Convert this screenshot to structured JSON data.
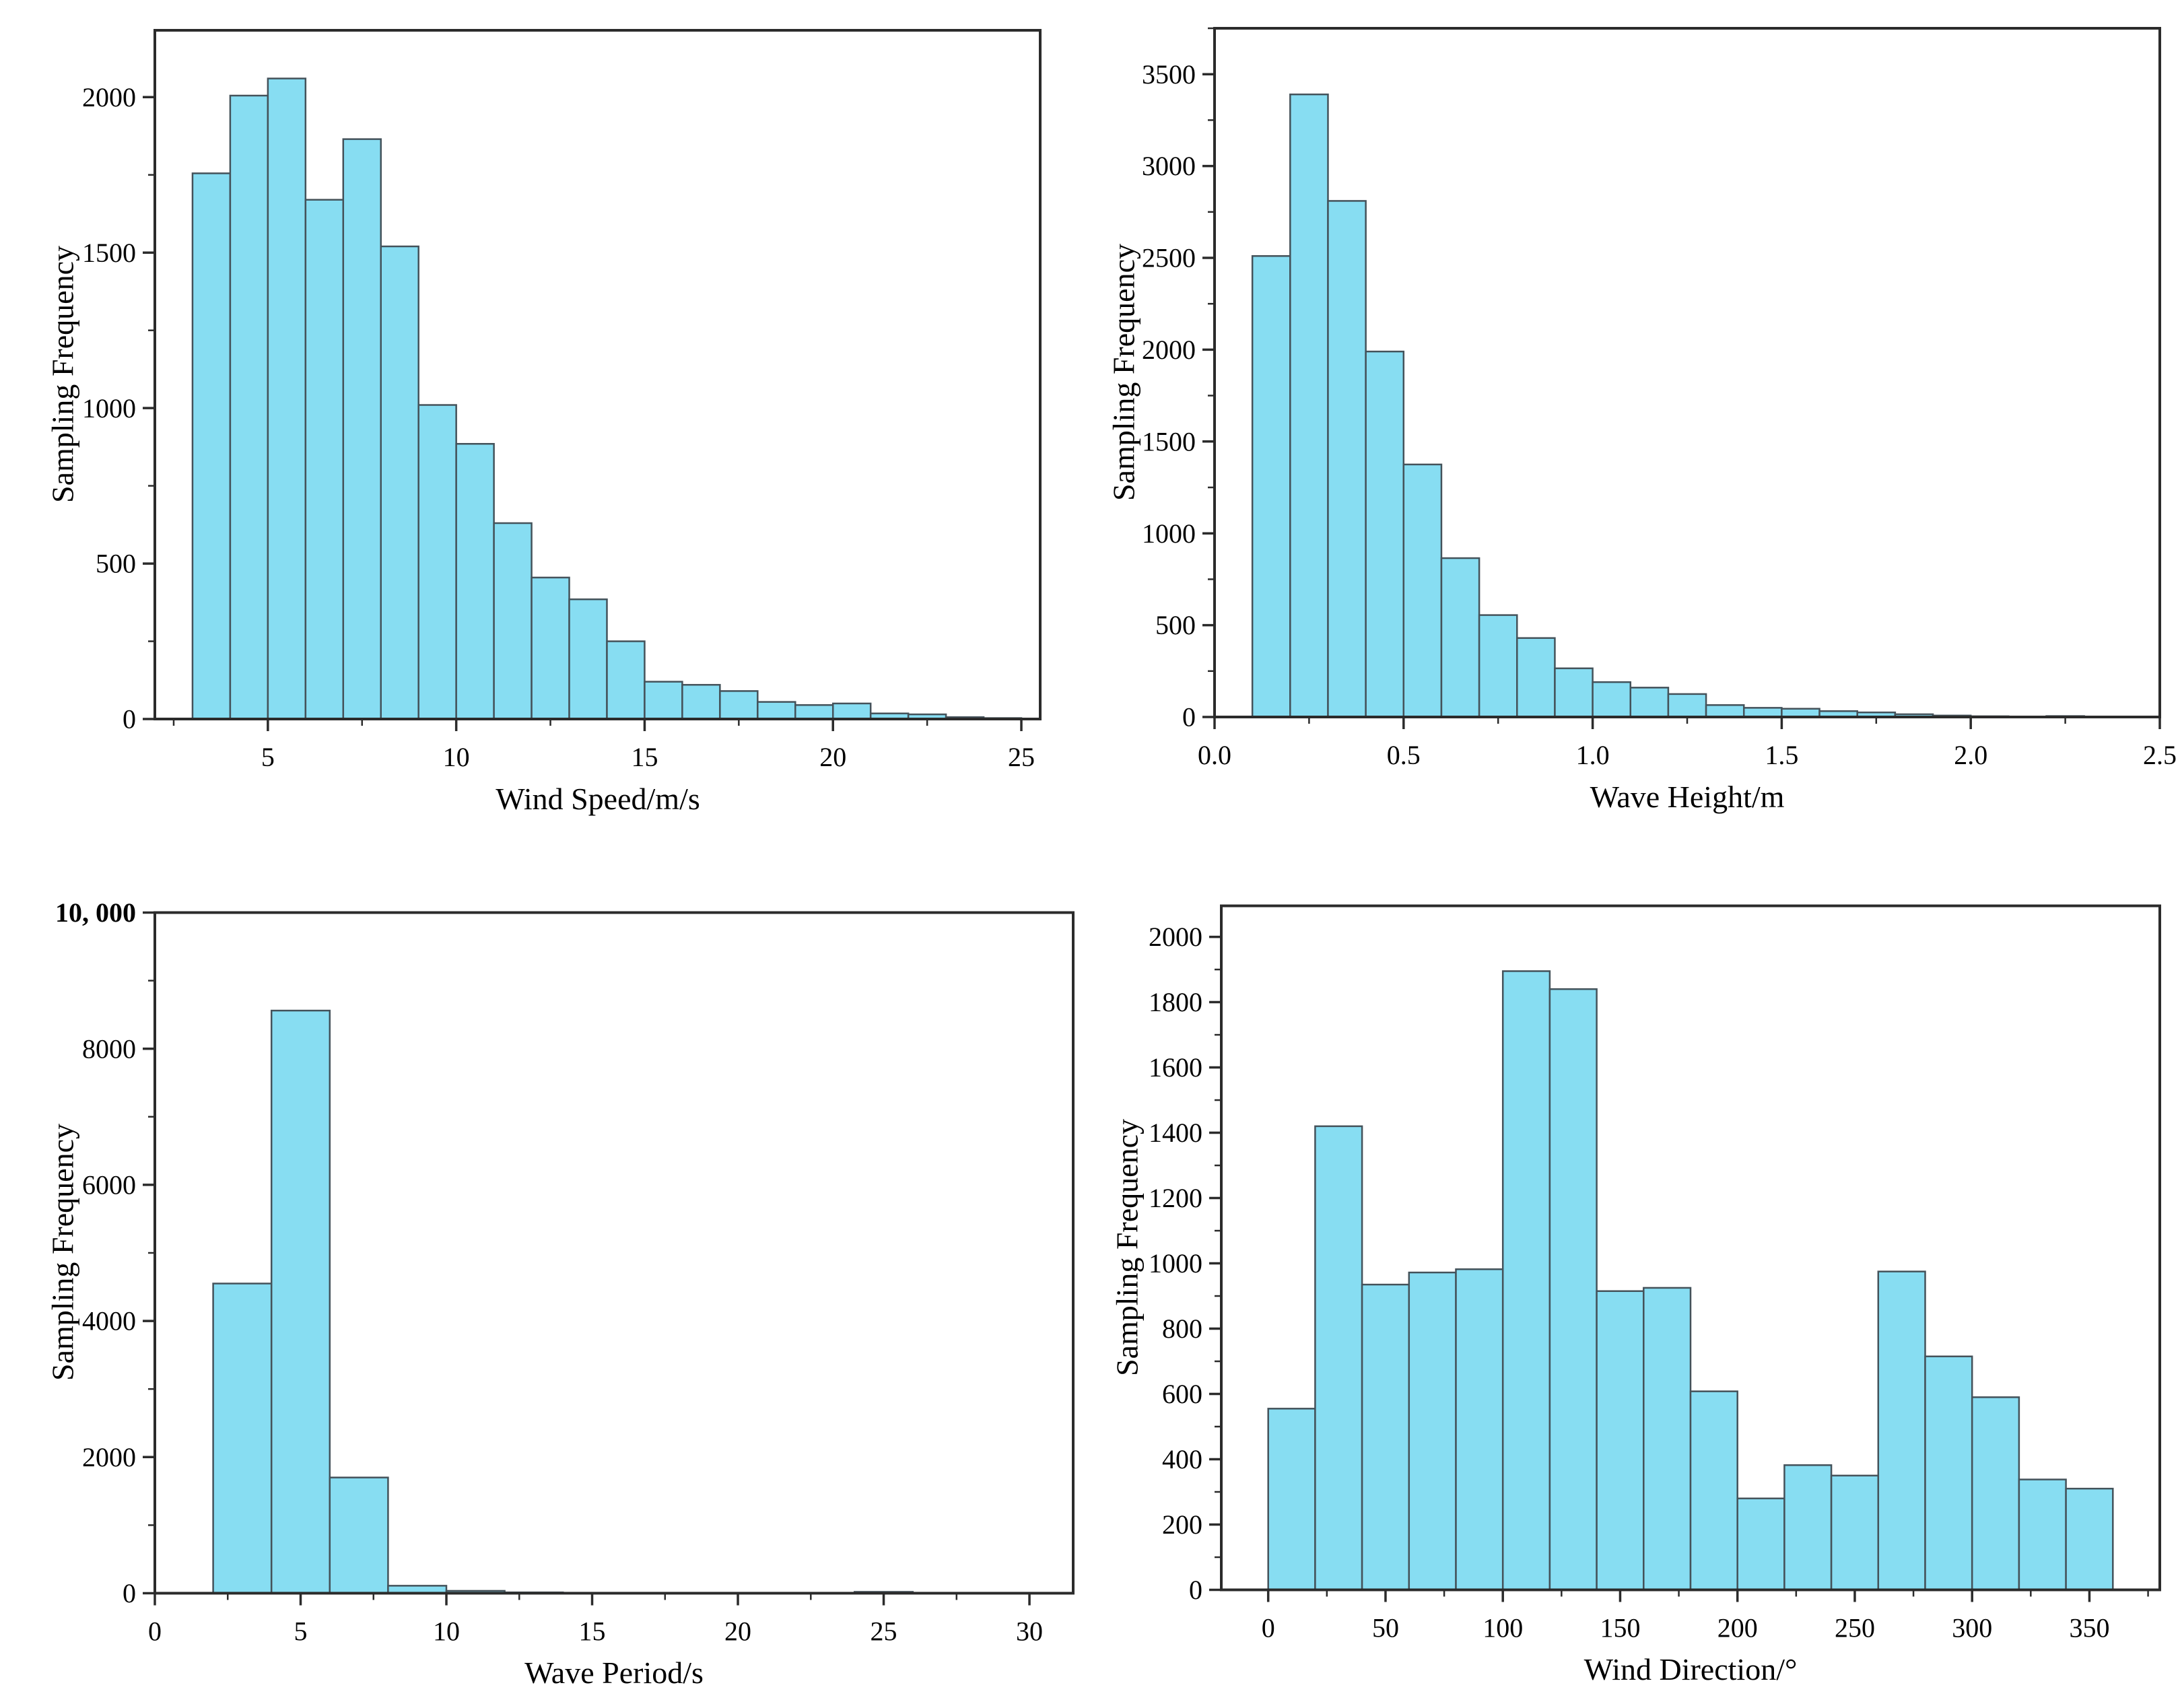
{
  "style": {
    "background": "#ffffff",
    "bar_fill": "#87DDF2",
    "bar_edge": "#44525A",
    "spine_color": "#2B2B2B",
    "tick_color": "#2B2B2B",
    "text_color": "#000000"
  },
  "chart_data": [
    {
      "id": "wind-speed-histogram",
      "type": "bar",
      "title": "",
      "xlabel": "Wind Speed/m/s",
      "ylabel": "Sampling Frequency",
      "bin_start": 3,
      "bin_width": 1,
      "values": [
        1755,
        2005,
        2060,
        1670,
        1865,
        1520,
        1010,
        885,
        630,
        455,
        385,
        250,
        120,
        110,
        90,
        55,
        45,
        50,
        18,
        15,
        6,
        3
      ],
      "xlim": [
        2,
        25.5
      ],
      "ylim": [
        0,
        2215
      ],
      "xticks": [
        5,
        10,
        15,
        20,
        25
      ],
      "xtick_labels": [
        "5",
        "10",
        "15",
        "20",
        "25"
      ],
      "yticks": [
        0,
        500,
        1000,
        1500,
        2000
      ],
      "ytick_labels": [
        "0",
        "500",
        "1000",
        "1500",
        "2000"
      ],
      "minor_x": 2.5,
      "minor_y": 250,
      "grid": false,
      "legend": null
    },
    {
      "id": "wave-height-histogram",
      "type": "bar",
      "title": "",
      "xlabel": "Wave Height/m",
      "ylabel": "Sampling Frequency",
      "bin_start": 0.1,
      "bin_width": 0.1,
      "values": [
        2510,
        3390,
        2810,
        1990,
        1375,
        865,
        555,
        430,
        265,
        190,
        160,
        125,
        65,
        50,
        45,
        32,
        25,
        15,
        8,
        4,
        2,
        5,
        2
      ],
      "xlim": [
        0,
        2.5
      ],
      "ylim": [
        0,
        3750
      ],
      "xticks": [
        0,
        0.5,
        1.0,
        1.5,
        2.0,
        2.5
      ],
      "xtick_labels": [
        "0.0",
        "0.5",
        "1.0",
        "1.5",
        "2.0",
        "2.5"
      ],
      "yticks": [
        0,
        500,
        1000,
        1500,
        2000,
        2500,
        3000,
        3500
      ],
      "ytick_labels": [
        "0",
        "500",
        "1000",
        "1500",
        "2000",
        "2500",
        "3000",
        "3500"
      ],
      "minor_x": 0.25,
      "minor_y": 250,
      "grid": false,
      "legend": null
    },
    {
      "id": "wave-period-histogram",
      "type": "bar",
      "title": "",
      "xlabel": "Wave Period/s",
      "ylabel": "Sampling Frequency",
      "bin_start": 2,
      "bin_width": 2,
      "values": [
        4550,
        8560,
        1700,
        110,
        35,
        12,
        0,
        0,
        0,
        0,
        0,
        20
      ],
      "xlim": [
        0,
        31.5
      ],
      "ylim": [
        0,
        10000
      ],
      "xticks": [
        0,
        5,
        10,
        15,
        20,
        25,
        30
      ],
      "xtick_labels": [
        "0",
        "5",
        "10",
        "15",
        "20",
        "25",
        "30"
      ],
      "yticks": [
        0,
        2000,
        4000,
        6000,
        8000,
        10000
      ],
      "ytick_labels": [
        "0",
        "2000",
        "4000",
        "6000",
        "8000",
        "10, 000"
      ],
      "ytick_bold": [
        false,
        false,
        false,
        false,
        false,
        true
      ],
      "minor_x": 2.5,
      "minor_y": 1000,
      "grid": false,
      "legend": null
    },
    {
      "id": "wind-direction-histogram",
      "type": "bar",
      "title": "",
      "xlabel": "Wind Direction/°",
      "ylabel": "Sampling Frequency",
      "bin_start": 0,
      "bin_width": 20,
      "values": [
        555,
        1420,
        935,
        972,
        982,
        1895,
        1840,
        915,
        925,
        608,
        280,
        382,
        350,
        975,
        715,
        590,
        338,
        310
      ],
      "xlim": [
        -20,
        380
      ],
      "ylim": [
        0,
        2095
      ],
      "xticks": [
        0,
        50,
        100,
        150,
        200,
        250,
        300,
        350
      ],
      "xtick_labels": [
        "0",
        "50",
        "100",
        "150",
        "200",
        "250",
        "300",
        "350"
      ],
      "yticks": [
        0,
        200,
        400,
        600,
        800,
        1000,
        1200,
        1400,
        1600,
        1800,
        2000
      ],
      "ytick_labels": [
        "0",
        "200",
        "400",
        "600",
        "800",
        "1000",
        "1200",
        "1400",
        "1600",
        "1800",
        "2000"
      ],
      "minor_x": 25,
      "minor_y": 100,
      "grid": false,
      "legend": null
    }
  ]
}
